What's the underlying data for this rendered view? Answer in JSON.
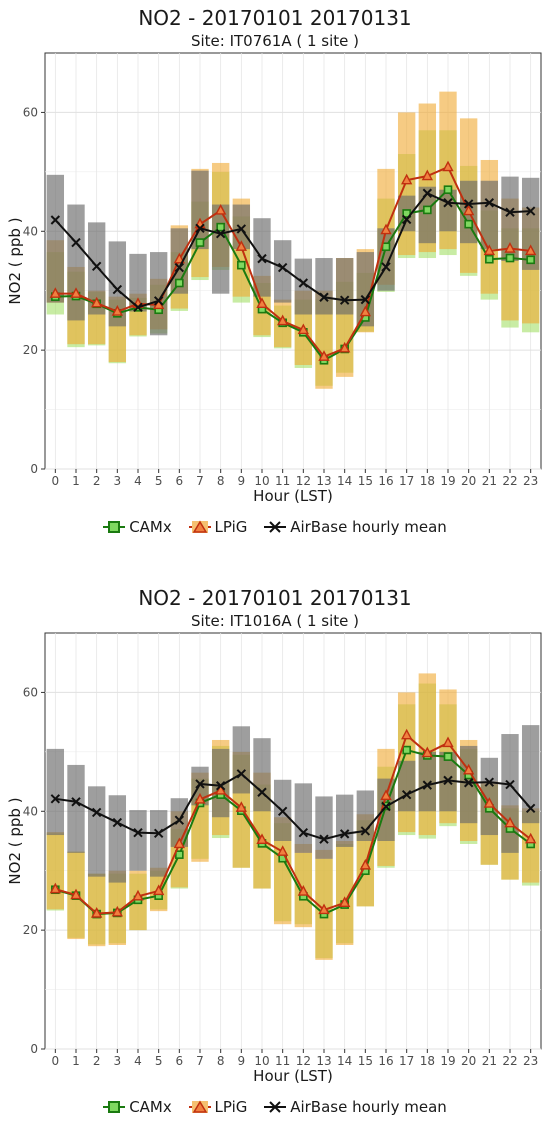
{
  "chart_data": [
    {
      "type": "line",
      "title": "NO2 - 20170101 20170131",
      "subtitle": "Site:  IT0761A ( 1 site )",
      "xlabel": "Hour (LST)",
      "ylabel": "NO2 ( ppb )",
      "ylim": [
        0,
        70
      ],
      "yticks": [
        0,
        20,
        40,
        60
      ],
      "categories": [
        "0",
        "1",
        "2",
        "3",
        "4",
        "5",
        "6",
        "7",
        "8",
        "9",
        "10",
        "11",
        "12",
        "13",
        "14",
        "15",
        "16",
        "17",
        "18",
        "19",
        "20",
        "21",
        "22",
        "23"
      ],
      "grid": true,
      "legend": "bottom",
      "series": [
        {
          "name": "CAMx",
          "color": "#1a7a10",
          "marker": "square",
          "values": [
            29.0,
            29.1,
            27.8,
            26.2,
            27.2,
            26.8,
            31.3,
            38.1,
            40.7,
            34.3,
            26.9,
            24.6,
            23.0,
            18.3,
            20.2,
            25.5,
            37.4,
            43.0,
            43.6,
            47.0,
            41.2,
            35.3,
            35.5,
            35.2
          ],
          "band_low": [
            26,
            20.5,
            20.8,
            17.8,
            22.3,
            22.8,
            26.6,
            31.8,
            33.5,
            28.0,
            22.2,
            20.3,
            17.0,
            14.0,
            16.2,
            23.1,
            29.8,
            35.5,
            35.5,
            36.0,
            32.5,
            28.5,
            23.8,
            23.0
          ],
          "band_high": [
            36.5,
            33.2,
            29.8,
            28.5,
            28.8,
            31.0,
            36.5,
            45.0,
            50.0,
            42.5,
            31.3,
            27.5,
            28.5,
            28.5,
            31.5,
            33.0,
            45.5,
            53.0,
            57.0,
            57.0,
            51.0,
            43.5,
            40.5,
            40.5
          ]
        },
        {
          "name": "LPiG",
          "color": "#c03010",
          "marker": "triangle",
          "values": [
            29.5,
            29.5,
            27.9,
            26.5,
            27.8,
            27.6,
            35.3,
            41.2,
            43.5,
            37.4,
            27.8,
            24.9,
            23.4,
            18.9,
            20.3,
            26.4,
            40.2,
            48.6,
            49.3,
            50.8,
            43.4,
            36.7,
            37.1,
            36.7
          ],
          "band_low": [
            28,
            21,
            21,
            18,
            22.5,
            23.5,
            27,
            32.3,
            34,
            29,
            22.5,
            20.5,
            17.5,
            13.5,
            15.5,
            23,
            31,
            36,
            36.5,
            37,
            33,
            29.5,
            25,
            24.5
          ],
          "band_high": [
            38.5,
            34,
            30,
            29,
            29.5,
            32,
            41,
            50.5,
            51.5,
            45.5,
            32.5,
            28.5,
            30,
            30,
            35.5,
            37,
            50.5,
            60,
            61.5,
            63.5,
            59,
            52,
            45.5,
            44
          ]
        },
        {
          "name": "AirBase hourly mean",
          "color": "#111111",
          "marker": "x",
          "values": [
            41.9,
            38.1,
            34.1,
            30.2,
            27.2,
            28.3,
            33.9,
            40.5,
            39.6,
            40.4,
            35.4,
            33.9,
            31.3,
            28.9,
            28.4,
            28.5,
            34.0,
            42.0,
            46.4,
            44.8,
            44.6,
            44.8,
            43.2,
            43.4
          ],
          "band_low": [
            28,
            25,
            26,
            24,
            26.5,
            22.5,
            29.5,
            37,
            29.5,
            37,
            29,
            28,
            26,
            26,
            26,
            24,
            30,
            40,
            38,
            40,
            38,
            37,
            35,
            33.5
          ],
          "band_high": [
            49.5,
            44.5,
            41.5,
            38.3,
            36.2,
            36.5,
            40.5,
            50.2,
            44.5,
            44.5,
            42.2,
            38.5,
            35.4,
            35.5,
            35.5,
            36.5,
            40.5,
            46,
            47.5,
            47,
            48.5,
            48.5,
            49.2,
            49
          ]
        }
      ]
    },
    {
      "type": "line",
      "title": "NO2 - 20170101 20170131",
      "subtitle": "Site:  IT1016A ( 1 site )",
      "xlabel": "Hour (LST)",
      "ylabel": "NO2 ( ppb )",
      "ylim": [
        0,
        70
      ],
      "yticks": [
        0,
        20,
        40,
        60
      ],
      "categories": [
        "0",
        "1",
        "2",
        "3",
        "4",
        "5",
        "6",
        "7",
        "8",
        "9",
        "10",
        "11",
        "12",
        "13",
        "14",
        "15",
        "16",
        "17",
        "18",
        "19",
        "20",
        "21",
        "22",
        "23"
      ],
      "grid": true,
      "legend": "bottom",
      "series": [
        {
          "name": "CAMx",
          "color": "#1a7a10",
          "marker": "square",
          "values": [
            26.8,
            25.8,
            22.7,
            22.9,
            25.1,
            25.8,
            32.7,
            41.4,
            42.8,
            40.1,
            34.6,
            32.1,
            25.7,
            22.7,
            24.3,
            30.0,
            40.9,
            50.3,
            49.4,
            49.2,
            46.1,
            40.5,
            37.1,
            34.5
          ],
          "band_low": [
            23.3,
            18.7,
            17.6,
            17.8,
            20,
            23.5,
            27,
            32,
            35.5,
            30.5,
            27,
            21.5,
            21,
            15.3,
            17.8,
            24,
            30.5,
            36,
            35.4,
            37.5,
            34.5,
            31,
            28.5,
            27.5
          ],
          "band_high": [
            36.3,
            33.2,
            29.5,
            29.5,
            29.5,
            30,
            37,
            45.5,
            51,
            49.5,
            44.5,
            38,
            33,
            32,
            34.5,
            38.5,
            47.5,
            58,
            61.5,
            58,
            50.5,
            44.5,
            40.5,
            40
          ]
        },
        {
          "name": "LPiG",
          "color": "#c03010",
          "marker": "triangle",
          "values": [
            26.9,
            25.9,
            22.8,
            23.0,
            25.7,
            26.6,
            34.5,
            42.0,
            43.5,
            40.6,
            35.2,
            33.2,
            26.5,
            23.4,
            24.6,
            30.9,
            42.6,
            52.8,
            49.8,
            51.5,
            46.9,
            41.3,
            38.0,
            35.3
          ],
          "band_low": [
            23.5,
            18.5,
            17.3,
            17.5,
            20,
            23.2,
            27.2,
            31.5,
            36,
            30.5,
            27,
            21,
            20.5,
            15,
            17.5,
            24,
            30.8,
            36.5,
            36,
            38,
            35,
            31,
            28.5,
            28
          ],
          "band_high": [
            36.5,
            33.2,
            29.5,
            30,
            30,
            30.5,
            40,
            46.5,
            52,
            50,
            46.5,
            39,
            34.5,
            33.5,
            35,
            39.5,
            50.5,
            60,
            63.2,
            60.5,
            52,
            45,
            41,
            40.5
          ]
        },
        {
          "name": "AirBase hourly mean",
          "color": "#111111",
          "marker": "x",
          "values": [
            42.1,
            41.6,
            39.8,
            38.1,
            36.4,
            36.3,
            38.5,
            44.6,
            44.3,
            46.3,
            43.2,
            40.0,
            36.4,
            35.3,
            36.2,
            36.7,
            40.8,
            42.8,
            44.4,
            45.2,
            44.8,
            44.9,
            44.5,
            40.5
          ],
          "band_low": [
            36,
            33,
            29,
            28,
            30,
            29,
            34,
            41,
            39,
            43,
            40,
            35,
            33,
            32,
            34,
            35,
            35,
            40,
            40,
            40,
            38,
            36,
            33,
            38
          ],
          "band_high": [
            50.5,
            47.8,
            44.2,
            42.7,
            40.2,
            40.2,
            42.2,
            47.5,
            50.5,
            54.3,
            52.3,
            45.3,
            44.7,
            42.5,
            42.8,
            43.5,
            45.5,
            48.5,
            50,
            50,
            51,
            49,
            53,
            54.5
          ]
        }
      ]
    }
  ],
  "legend_labels": [
    "CAMx",
    "LPiG",
    "AirBase hourly mean"
  ]
}
